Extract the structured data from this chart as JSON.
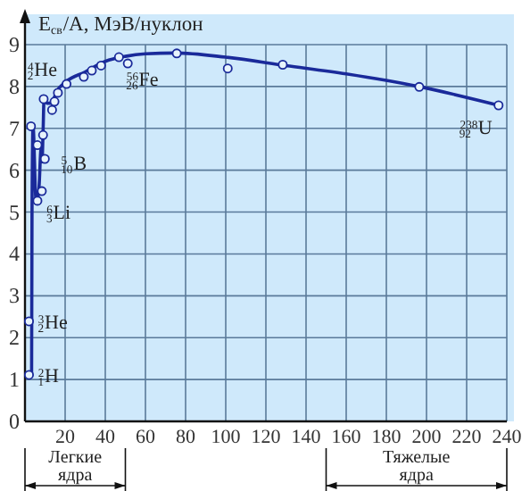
{
  "chart_data": {
    "type": "line",
    "ylabel": "E$_{св}$/A, МэВ/нуклон",
    "xlim": [
      0,
      240
    ],
    "ylim": [
      0,
      9
    ],
    "xticks": [
      20,
      40,
      60,
      80,
      100,
      120,
      140,
      160,
      180,
      200,
      220,
      240
    ],
    "yticks": [
      0,
      1,
      2,
      3,
      4,
      5,
      6,
      7,
      8,
      9
    ],
    "grid": true,
    "series": [
      {
        "color": "#1a2a9a",
        "marker": "none",
        "x": [
          3.3,
          3.5,
          4,
          5.5,
          6.2,
          7,
          8,
          8.5,
          9,
          9.5,
          11,
          13,
          16,
          20,
          30,
          40,
          50,
          60,
          75,
          100,
          130,
          160,
          196,
          236
        ],
        "values": [
          1.1,
          5,
          7.07,
          5.3,
          5.3,
          5.6,
          6.5,
          6.2,
          6.9,
          7.7,
          7.6,
          7.6,
          7.9,
          8.1,
          8.35,
          8.6,
          8.72,
          8.78,
          8.8,
          8.7,
          8.5,
          8.3,
          8.0,
          7.55
        ]
      },
      {
        "type": "scatter",
        "color": "#1a2a9a",
        "marker": "circle",
        "x": [
          2,
          2,
          3,
          6.2,
          6.2,
          8.4,
          9,
          9.3,
          9.9,
          13.5,
          14.7,
          16.4,
          20.7,
          29.3,
          33.3,
          37.9,
          46.8,
          51.2,
          75.6,
          101,
          128.4,
          196.4,
          235.9
        ],
        "values": [
          1.11,
          2.39,
          7.05,
          6.6,
          5.27,
          5.5,
          6.84,
          7.7,
          6.27,
          7.44,
          7.64,
          7.85,
          8.06,
          8.23,
          8.38,
          8.5,
          8.7,
          8.55,
          8.79,
          8.43,
          8.52,
          7.99,
          7.55
        ]
      }
    ],
    "annotations": [
      {
        "text": "$^{4}$$_{2}$He",
        "x": 3,
        "y": 7.05
      },
      {
        "text": "$^{5}$$_{10}$B",
        "x": 9.9,
        "y": 6.27
      },
      {
        "text": "$^{6}$$_{3}$Li",
        "x": 6.2,
        "y": 5.27
      },
      {
        "text": "$^{3}$$_{2}$He",
        "x": 2,
        "y": 2.39
      },
      {
        "text": "$^{2}$$_{1}$H",
        "x": 2,
        "y": 1.11
      },
      {
        "text": "$^{56}$$_{26}$Fe",
        "x": 46.8,
        "y": 8.7
      },
      {
        "text": "$^{238}$$_{92}$U",
        "x": 235.9,
        "y": 7.55
      },
      "Легкие ядра",
      "Тяжелые ядра"
    ]
  }
}
